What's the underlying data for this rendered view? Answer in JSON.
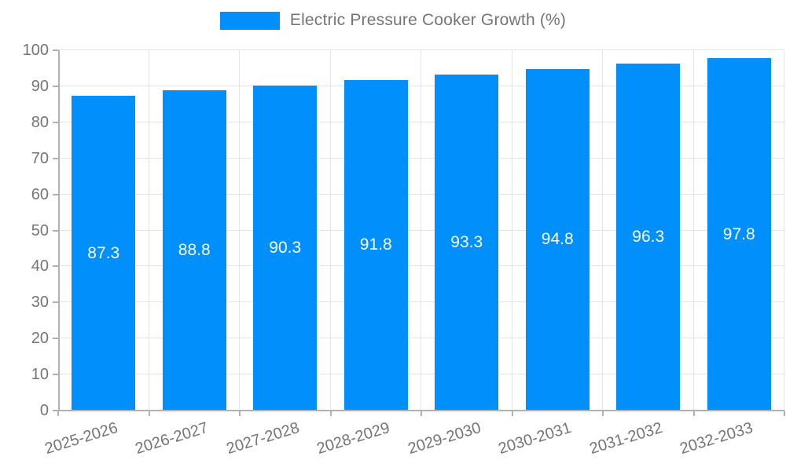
{
  "chart_data": {
    "type": "bar",
    "title": "Electric Pressure Cooker Growth (%)",
    "categories": [
      "2025-2026",
      "2026-2027",
      "2027-2028",
      "2028-2029",
      "2029-2030",
      "2030-2031",
      "2031-2032",
      "2032-2033"
    ],
    "values": [
      87.3,
      88.8,
      90.3,
      91.8,
      93.3,
      94.8,
      96.3,
      97.8
    ],
    "series_name": "Electric Pressure Cooker Growth (%)",
    "xlabel": "",
    "ylabel": "",
    "ylim": [
      0,
      100
    ],
    "yticks": [
      0,
      10,
      20,
      30,
      40,
      50,
      60,
      70,
      80,
      90,
      100
    ],
    "grid": true,
    "legend_position": "top",
    "colors": {
      "bar": "#008FFB",
      "grid": "#e4e4e4",
      "axis": "#b1b1b1",
      "tick_label": "#757575",
      "value_label": "#ffffff"
    }
  }
}
